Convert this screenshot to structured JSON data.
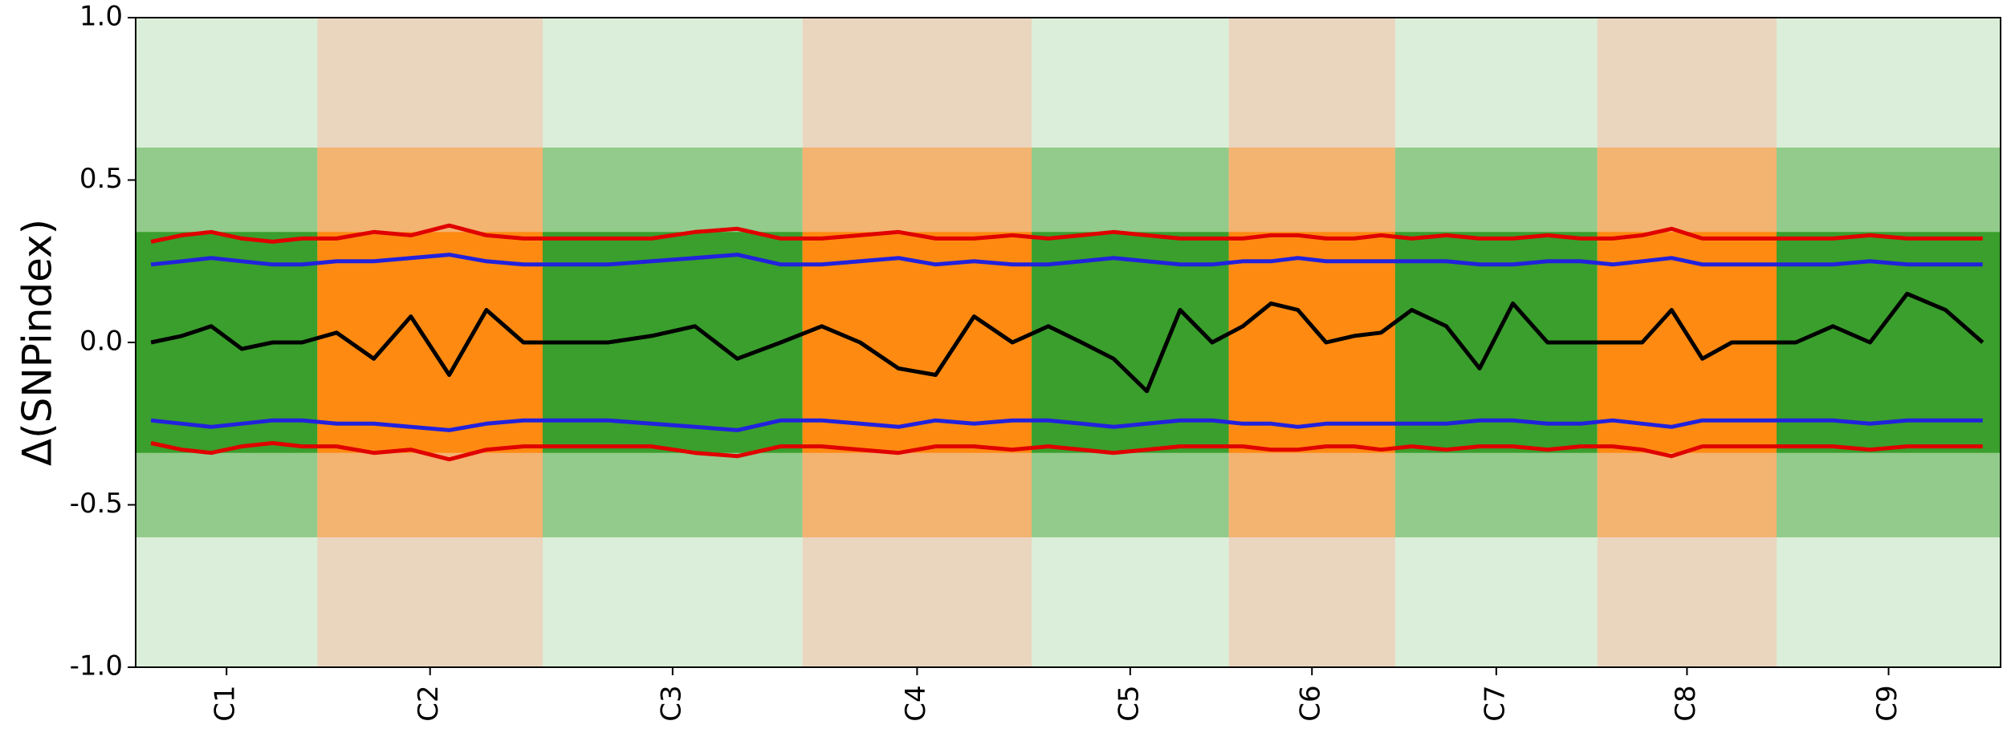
{
  "chart_data": {
    "type": "line",
    "y_label": "Δ(SNPindex)",
    "categories": [
      "C1",
      "C2",
      "C3",
      "C4",
      "C5",
      "C6",
      "C7",
      "C8",
      "C9"
    ],
    "bounds": [
      0,
      142,
      318,
      521,
      700,
      854,
      984,
      1142,
      1282,
      1457
    ],
    "band_colors": [
      "#3a9f2c",
      "#ff8a12"
    ],
    "shade_color": "#e6e6e6",
    "xlim": [
      0,
      1457
    ],
    "ylim": [
      -1,
      1
    ],
    "yticks": [
      {
        "value": 1,
        "label": "1.0"
      },
      {
        "value": 0.5,
        "label": "0.5"
      },
      {
        "value": 0,
        "label": "0.0"
      },
      {
        "value": -0.5,
        "label": "-0.5"
      },
      {
        "value": -1,
        "label": "-1.0"
      }
    ],
    "x": [
      12,
      36,
      59,
      83,
      107,
      130,
      157,
      186,
      215,
      245,
      274,
      303,
      335,
      369,
      403,
      437,
      470,
      504,
      536,
      566,
      596,
      625,
      655,
      685,
      713,
      739,
      764,
      790,
      816,
      841,
      865,
      887,
      908,
      930,
      952,
      973,
      997,
      1024,
      1050,
      1076,
      1103,
      1129,
      1154,
      1177,
      1200,
      1224,
      1247,
      1270,
      1297,
      1326,
      1355,
      1384,
      1414,
      1443
    ],
    "series": [
      {
        "color": "#e00000",
        "values": [
          0.31,
          0.33,
          0.34,
          0.32,
          0.31,
          0.32,
          0.32,
          0.34,
          0.33,
          0.36,
          0.33,
          0.32,
          0.32,
          0.32,
          0.32,
          0.34,
          0.35,
          0.32,
          0.32,
          0.33,
          0.34,
          0.32,
          0.32,
          0.33,
          0.32,
          0.33,
          0.34,
          0.33,
          0.32,
          0.32,
          0.32,
          0.33,
          0.33,
          0.32,
          0.32,
          0.33,
          0.32,
          0.33,
          0.32,
          0.32,
          0.33,
          0.32,
          0.32,
          0.33,
          0.35,
          0.32,
          0.32,
          0.32,
          0.32,
          0.32,
          0.33,
          0.32,
          0.32,
          0.32
        ]
      },
      {
        "color": "#2222dd",
        "values": [
          0.24,
          0.25,
          0.26,
          0.25,
          0.24,
          0.24,
          0.25,
          0.25,
          0.26,
          0.27,
          0.25,
          0.24,
          0.24,
          0.24,
          0.25,
          0.26,
          0.27,
          0.24,
          0.24,
          0.25,
          0.26,
          0.24,
          0.25,
          0.24,
          0.24,
          0.25,
          0.26,
          0.25,
          0.24,
          0.24,
          0.25,
          0.25,
          0.26,
          0.25,
          0.25,
          0.25,
          0.25,
          0.25,
          0.24,
          0.24,
          0.25,
          0.25,
          0.24,
          0.25,
          0.26,
          0.24,
          0.24,
          0.24,
          0.24,
          0.24,
          0.25,
          0.24,
          0.24,
          0.24
        ]
      },
      {
        "color": "#000000",
        "values": [
          0,
          0.02,
          0.05,
          -0.02,
          0,
          0,
          0.03,
          -0.05,
          0.08,
          -0.1,
          0.1,
          0,
          0,
          0,
          0.02,
          0.05,
          -0.05,
          0,
          0.05,
          0,
          -0.08,
          -0.1,
          0.08,
          0,
          0.05,
          0,
          -0.05,
          -0.15,
          0.1,
          0,
          0.05,
          0.12,
          0.1,
          0,
          0.02,
          0.03,
          0.1,
          0.05,
          -0.08,
          0.12,
          0,
          0,
          0,
          0,
          0.1,
          -0.05,
          0,
          0,
          0,
          0.05,
          0,
          0.15,
          0.1,
          0
        ]
      },
      {
        "color": "#2222dd",
        "values": [
          -0.24,
          -0.25,
          -0.26,
          -0.25,
          -0.24,
          -0.24,
          -0.25,
          -0.25,
          -0.26,
          -0.27,
          -0.25,
          -0.24,
          -0.24,
          -0.24,
          -0.25,
          -0.26,
          -0.27,
          -0.24,
          -0.24,
          -0.25,
          -0.26,
          -0.24,
          -0.25,
          -0.24,
          -0.24,
          -0.25,
          -0.26,
          -0.25,
          -0.24,
          -0.24,
          -0.25,
          -0.25,
          -0.26,
          -0.25,
          -0.25,
          -0.25,
          -0.25,
          -0.25,
          -0.24,
          -0.24,
          -0.25,
          -0.25,
          -0.24,
          -0.25,
          -0.26,
          -0.24,
          -0.24,
          -0.24,
          -0.24,
          -0.24,
          -0.25,
          -0.24,
          -0.24,
          -0.24
        ]
      },
      {
        "color": "#e00000",
        "values": [
          -0.31,
          -0.33,
          -0.34,
          -0.32,
          -0.31,
          -0.32,
          -0.32,
          -0.34,
          -0.33,
          -0.36,
          -0.33,
          -0.32,
          -0.32,
          -0.32,
          -0.32,
          -0.34,
          -0.35,
          -0.32,
          -0.32,
          -0.33,
          -0.34,
          -0.32,
          -0.32,
          -0.33,
          -0.32,
          -0.33,
          -0.34,
          -0.33,
          -0.32,
          -0.32,
          -0.32,
          -0.33,
          -0.33,
          -0.32,
          -0.32,
          -0.33,
          -0.32,
          -0.33,
          -0.32,
          -0.32,
          -0.33,
          -0.32,
          -0.32,
          -0.33,
          -0.35,
          -0.32,
          -0.32,
          -0.32,
          -0.32,
          -0.32,
          -0.33,
          -0.32,
          -0.32,
          -0.32
        ]
      }
    ]
  }
}
